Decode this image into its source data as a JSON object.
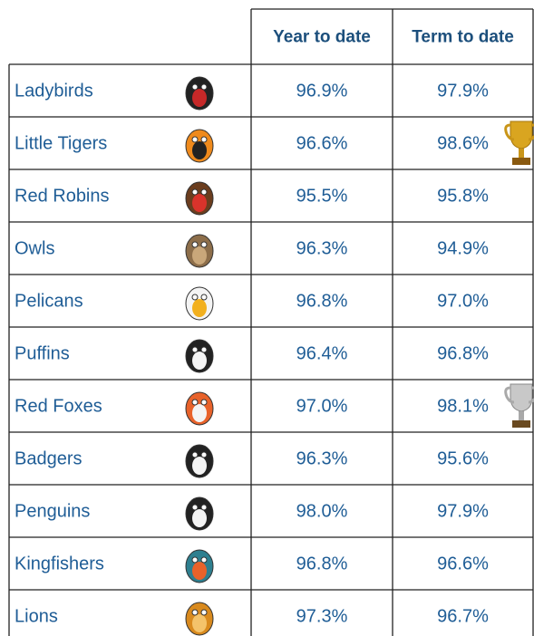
{
  "table": {
    "header": [
      "Year to date",
      "Term to date"
    ],
    "rows": [
      [
        "Ladybirds",
        "96.9%",
        "97.9%"
      ],
      [
        "Little Tigers",
        "96.6%",
        "98.6%"
      ],
      [
        "Red Robins",
        "95.5%",
        "95.8%"
      ],
      [
        "Owls",
        "96.3%",
        "94.9%"
      ],
      [
        "Pelicans",
        "96.8%",
        "97.0%"
      ],
      [
        "Puffins",
        "96.4%",
        "96.8%"
      ],
      [
        "Red Foxes",
        "97.0%",
        "98.1%"
      ],
      [
        "Badgers",
        "96.3%",
        "95.6%"
      ],
      [
        "Penguins",
        "98.0%",
        "97.9%"
      ],
      [
        "Kingfishers",
        "96.8%",
        "96.6%"
      ],
      [
        "Lions",
        "97.3%",
        "96.7%"
      ]
    ]
  }
}
